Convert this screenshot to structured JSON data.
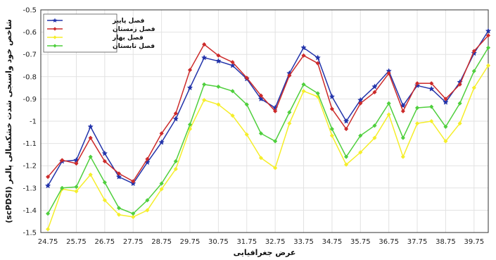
{
  "chart_data": {
    "type": "line",
    "xlabel": "عرض جغرافیایی",
    "ylabel": "شاخص خود واسنجی شدت خشکسالی پالمر (scPDSI)",
    "x_tick_labels": [
      "24.75",
      "25.75",
      "26.75",
      "27.75",
      "28.75",
      "29.75",
      "30.75",
      "31.75",
      "32.75",
      "33.75",
      "34.75",
      "35.75",
      "36.75",
      "37.75",
      "38.75",
      "39.75"
    ],
    "x": [
      24.75,
      25.25,
      25.75,
      26.25,
      26.75,
      27.25,
      27.75,
      28.25,
      28.75,
      29.25,
      29.75,
      30.25,
      30.75,
      31.25,
      31.75,
      32.25,
      32.75,
      33.25,
      33.75,
      34.25,
      34.75,
      35.25,
      35.75,
      36.25,
      36.75,
      37.25,
      37.75,
      38.25,
      38.75,
      39.25,
      39.75,
      40.25
    ],
    "xlim": [
      24.5,
      40.25
    ],
    "ylim": [
      -1.5,
      -0.5
    ],
    "y_ticks": [
      -1.5,
      -1.4,
      -1.3,
      -1.2,
      -1.1,
      -1,
      -0.9,
      -0.8,
      -0.7,
      -0.6,
      -0.5
    ],
    "y_tick_labels": [
      "-1.5",
      "-1.4",
      "-1.3",
      "-1.2",
      "-1.1",
      "-1",
      "-0.9",
      "-0.8",
      "-0.7",
      "-0.6",
      "-0.5"
    ],
    "grid": true,
    "legend_position": "top-left",
    "series": [
      {
        "name": "فصل پاییز",
        "color": "#2233aa",
        "marker": "star",
        "values": [
          -1.29,
          -1.18,
          -1.175,
          -1.025,
          -1.145,
          -1.25,
          -1.28,
          -1.185,
          -1.095,
          -0.99,
          -0.85,
          -0.715,
          -0.73,
          -0.75,
          -0.81,
          -0.9,
          -0.94,
          -0.785,
          -0.67,
          -0.715,
          -0.89,
          -1.0,
          -0.905,
          -0.845,
          -0.775,
          -0.93,
          -0.84,
          -0.855,
          -0.915,
          -0.825,
          -0.695,
          -0.595
        ]
      },
      {
        "name": "فصل زمستان",
        "color": "#cc2a2a",
        "marker": "diamond",
        "values": [
          -1.25,
          -1.175,
          -1.19,
          -1.075,
          -1.18,
          -1.235,
          -1.27,
          -1.17,
          -1.055,
          -0.965,
          -0.77,
          -0.655,
          -0.705,
          -0.735,
          -0.805,
          -0.885,
          -0.955,
          -0.795,
          -0.705,
          -0.74,
          -0.945,
          -1.035,
          -0.92,
          -0.87,
          -0.785,
          -0.955,
          -0.83,
          -0.83,
          -0.9,
          -0.835,
          -0.685,
          -0.615
        ]
      },
      {
        "name": "فصل بهار",
        "color": "#f5ee2a",
        "marker": "diamond",
        "values": [
          -1.485,
          -1.305,
          -1.315,
          -1.24,
          -1.355,
          -1.42,
          -1.43,
          -1.4,
          -1.305,
          -1.215,
          -1.035,
          -0.905,
          -0.925,
          -0.975,
          -1.06,
          -1.165,
          -1.21,
          -1.01,
          -0.865,
          -0.89,
          -1.065,
          -1.195,
          -1.14,
          -1.075,
          -0.97,
          -1.16,
          -1.01,
          -1.0,
          -1.09,
          -1.01,
          -0.85,
          -0.75
        ]
      },
      {
        "name": "فصل تابستان",
        "color": "#4fcf3d",
        "marker": "diamond",
        "values": [
          -1.415,
          -1.3,
          -1.295,
          -1.16,
          -1.275,
          -1.39,
          -1.415,
          -1.355,
          -1.28,
          -1.18,
          -1.015,
          -0.835,
          -0.845,
          -0.865,
          -0.925,
          -1.055,
          -1.09,
          -0.96,
          -0.835,
          -0.875,
          -1.035,
          -1.16,
          -1.065,
          -1.02,
          -0.92,
          -1.075,
          -0.94,
          -0.935,
          -1.025,
          -0.92,
          -0.775,
          -0.67
        ]
      }
    ]
  }
}
